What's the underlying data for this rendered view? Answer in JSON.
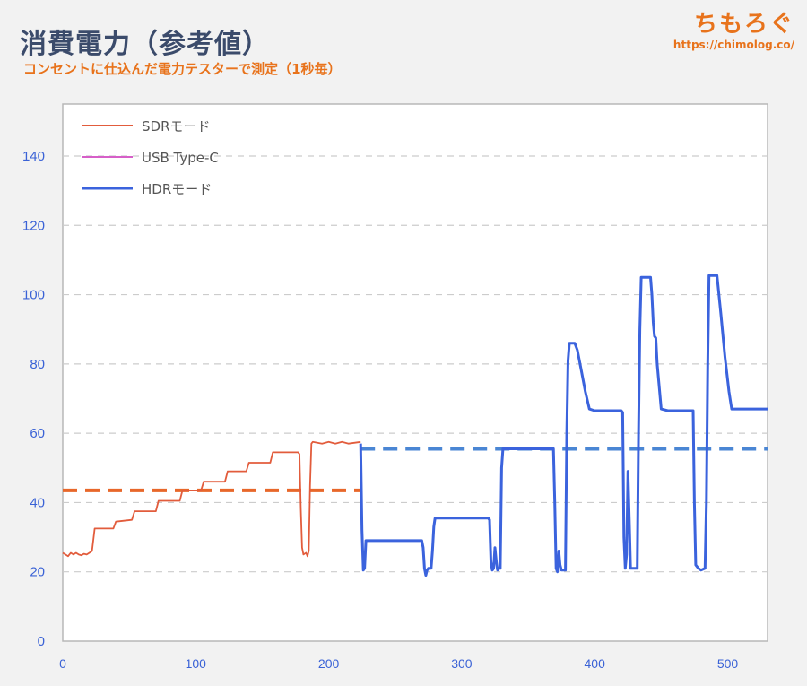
{
  "header": {
    "title": "消費電力（参考値）",
    "subtitle": "コンセントに仕込んだ電力テスターで測定（1秒毎）"
  },
  "logo": {
    "name": "ちもろぐ",
    "url": "https://chimolog.co/"
  },
  "colors": {
    "sdr": "#e25c3c",
    "usb": "#d65fc8",
    "hdr": "#3b63dd",
    "sdr_avg": "#e8672a",
    "hdr_avg": "#4a86d4"
  },
  "chart_data": {
    "type": "line",
    "xlabel": "",
    "ylabel": "",
    "xlim": [
      0,
      530
    ],
    "ylim": [
      0,
      155
    ],
    "x_ticks": [
      0,
      100,
      200,
      300,
      400,
      500
    ],
    "y_ticks": [
      0,
      20,
      40,
      60,
      80,
      100,
      120,
      140
    ],
    "grid": "horizontal dashed",
    "legend_position": "top-left",
    "series": [
      {
        "name": "SDRモード",
        "color": "#e25c3c",
        "points": [
          [
            0,
            25.5
          ],
          [
            2,
            25
          ],
          [
            4,
            24.5
          ],
          [
            6,
            25.5
          ],
          [
            8,
            25
          ],
          [
            10,
            25.5
          ],
          [
            12,
            25
          ],
          [
            14,
            24.8
          ],
          [
            16,
            25.2
          ],
          [
            18,
            25
          ],
          [
            20,
            25.5
          ],
          [
            22,
            26
          ],
          [
            24,
            32.5
          ],
          [
            38,
            32.5
          ],
          [
            40,
            34.5
          ],
          [
            52,
            35
          ],
          [
            54,
            37.5
          ],
          [
            70,
            37.5
          ],
          [
            72,
            40.5
          ],
          [
            88,
            40.5
          ],
          [
            90,
            43.5
          ],
          [
            104,
            43.5
          ],
          [
            106,
            46
          ],
          [
            122,
            46
          ],
          [
            124,
            49
          ],
          [
            138,
            49
          ],
          [
            140,
            51.5
          ],
          [
            156,
            51.5
          ],
          [
            158,
            54.5
          ],
          [
            177,
            54.5
          ],
          [
            178,
            54
          ],
          [
            179,
            38
          ],
          [
            180,
            27
          ],
          [
            181,
            25
          ],
          [
            183,
            25.5
          ],
          [
            184,
            24.5
          ],
          [
            185,
            26
          ],
          [
            186,
            45
          ],
          [
            187,
            57
          ],
          [
            188,
            57.5
          ],
          [
            195,
            57
          ],
          [
            200,
            57.5
          ],
          [
            205,
            57
          ],
          [
            210,
            57.5
          ],
          [
            215,
            57
          ],
          [
            224,
            57.5
          ]
        ]
      },
      {
        "name": "USB Type-C",
        "color": "#d65fc8",
        "points": []
      },
      {
        "name": "HDRモード",
        "color": "#3b63dd",
        "points": [
          [
            224,
            57
          ],
          [
            225,
            32
          ],
          [
            226,
            20.5
          ],
          [
            227,
            21
          ],
          [
            228,
            29
          ],
          [
            230,
            29
          ],
          [
            245,
            29
          ],
          [
            260,
            29
          ],
          [
            270,
            29
          ],
          [
            271,
            27
          ],
          [
            272,
            21
          ],
          [
            273,
            19
          ],
          [
            274,
            20.5
          ],
          [
            275,
            21
          ],
          [
            277,
            21
          ],
          [
            278,
            26
          ],
          [
            279,
            33
          ],
          [
            280,
            35.5
          ],
          [
            290,
            35.5
          ],
          [
            300,
            35.5
          ],
          [
            310,
            35.5
          ],
          [
            320,
            35.5
          ],
          [
            321,
            35
          ],
          [
            322,
            23
          ],
          [
            323,
            20.5
          ],
          [
            324,
            21
          ],
          [
            325,
            27
          ],
          [
            326,
            23
          ],
          [
            327,
            20.5
          ],
          [
            328,
            21
          ],
          [
            329,
            21
          ],
          [
            330,
            50
          ],
          [
            331,
            55.5
          ],
          [
            335,
            55.5
          ],
          [
            345,
            55.5
          ],
          [
            355,
            55.5
          ],
          [
            365,
            55.5
          ],
          [
            369,
            55.5
          ],
          [
            370,
            40
          ],
          [
            371,
            21
          ],
          [
            372,
            20
          ],
          [
            373,
            26
          ],
          [
            374,
            22
          ],
          [
            375,
            20.5
          ],
          [
            378,
            20.5
          ],
          [
            379,
            60
          ],
          [
            380,
            81
          ],
          [
            381,
            86
          ],
          [
            383,
            86
          ],
          [
            385,
            86
          ],
          [
            387,
            84
          ],
          [
            390,
            78
          ],
          [
            393,
            72
          ],
          [
            396,
            67
          ],
          [
            400,
            66.5
          ],
          [
            410,
            66.5
          ],
          [
            420,
            66.5
          ],
          [
            421,
            66
          ],
          [
            422,
            30
          ],
          [
            423,
            21
          ],
          [
            424,
            25
          ],
          [
            425,
            49
          ],
          [
            426,
            35
          ],
          [
            427,
            21
          ],
          [
            428,
            21
          ],
          [
            432,
            21
          ],
          [
            433,
            60
          ],
          [
            434,
            90
          ],
          [
            435,
            105
          ],
          [
            442,
            105
          ],
          [
            443,
            100
          ],
          [
            444,
            92
          ],
          [
            445,
            88
          ],
          [
            446,
            87.5
          ],
          [
            447,
            80
          ],
          [
            450,
            67
          ],
          [
            455,
            66.5
          ],
          [
            465,
            66.5
          ],
          [
            474,
            66.5
          ],
          [
            475,
            40
          ],
          [
            476,
            22
          ],
          [
            478,
            21
          ],
          [
            480,
            20.5
          ],
          [
            483,
            21
          ],
          [
            484,
            40
          ],
          [
            485,
            80
          ],
          [
            486,
            105.5
          ],
          [
            492,
            105.5
          ],
          [
            495,
            94
          ],
          [
            498,
            82
          ],
          [
            501,
            72
          ],
          [
            503,
            67
          ],
          [
            510,
            67
          ],
          [
            520,
            67
          ],
          [
            530,
            67
          ]
        ]
      },
      {
        "name": "SDR average",
        "color": "#e8672a",
        "dashed": true,
        "points": [
          [
            0,
            43.5
          ],
          [
            224,
            43.5
          ]
        ]
      },
      {
        "name": "HDR average",
        "color": "#4a86d4",
        "dashed": true,
        "points": [
          [
            224,
            55.5
          ],
          [
            530,
            55.5
          ]
        ]
      }
    ]
  }
}
